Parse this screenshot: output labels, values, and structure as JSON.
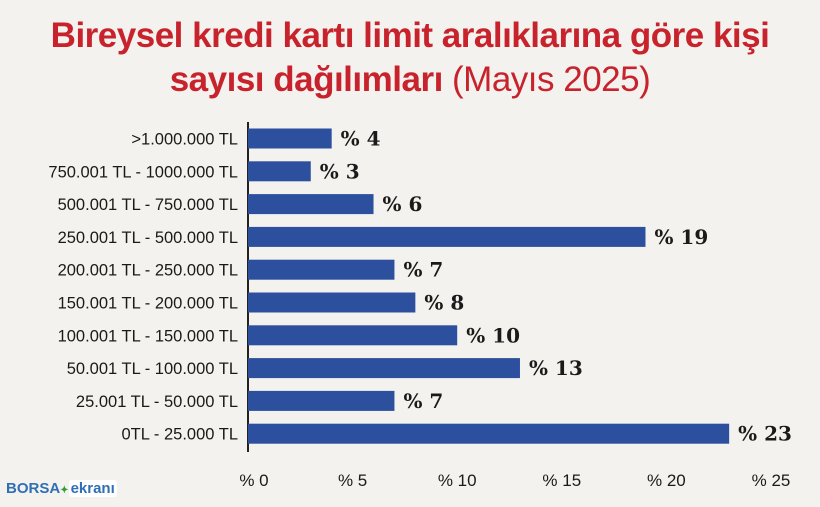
{
  "title": {
    "main_line1": "Bireysel kredi kartı limit aralıklarına göre kişi",
    "main_line2": "sayısı dağılımları",
    "subtitle": "(Mayıs 2025)"
  },
  "logo": {
    "part1": "BORSA",
    "part2": "ekranı"
  },
  "colors": {
    "bar": "#2c4f9e",
    "title": "#c8232c",
    "background": "#f3f2ee"
  },
  "chart_data": {
    "type": "bar",
    "orientation": "horizontal",
    "categories": [
      ">1.000.000 TL",
      "750.001 TL - 1000.000 TL",
      "500.001 TL - 750.000 TL",
      "250.001 TL - 500.000 TL",
      "200.001 TL - 250.000 TL",
      "150.001 TL - 200.000 TL",
      "100.001 TL - 150.000 TL",
      "50.001 TL - 100.000 TL",
      "25.001 TL - 50.000 TL",
      "0TL - 25.000 TL"
    ],
    "values": [
      4,
      3,
      6,
      19,
      7,
      8,
      10,
      13,
      7,
      23
    ],
    "value_labels": [
      "% 4",
      "% 3",
      "% 6",
      "% 19",
      "% 7",
      "% 8",
      "% 10",
      "% 13",
      "% 7",
      "% 23"
    ],
    "xticks": [
      0,
      5,
      10,
      15,
      20,
      25
    ],
    "xtick_labels": [
      "% 0",
      "% 5",
      "% 10",
      "% 15",
      "% 20",
      "% 25"
    ],
    "xlim": [
      0,
      25
    ],
    "grid": false,
    "legend": "none"
  }
}
